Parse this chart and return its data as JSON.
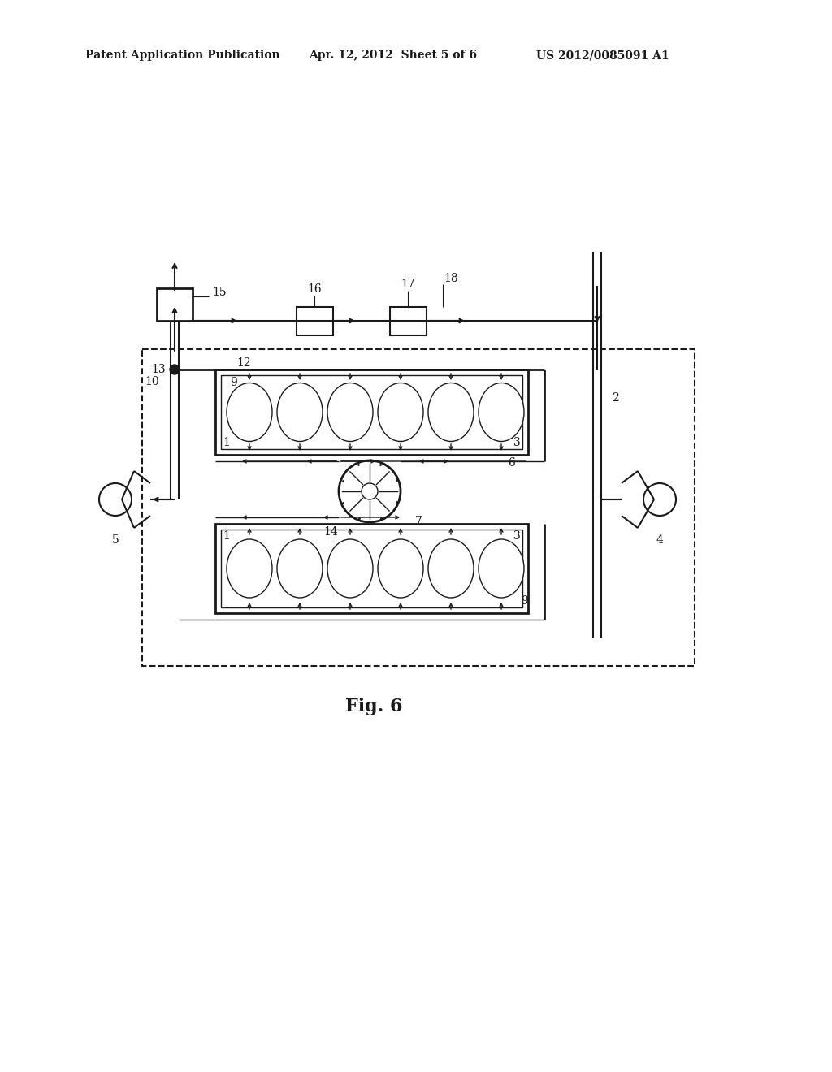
{
  "bg_color": "#ffffff",
  "line_color": "#1a1a1a",
  "header_text1": "Patent Application Publication",
  "header_text2": "Apr. 12, 2012  Sheet 5 of 6",
  "header_text3": "US 2012/0085091 A1",
  "fig_label": "Fig. 6"
}
